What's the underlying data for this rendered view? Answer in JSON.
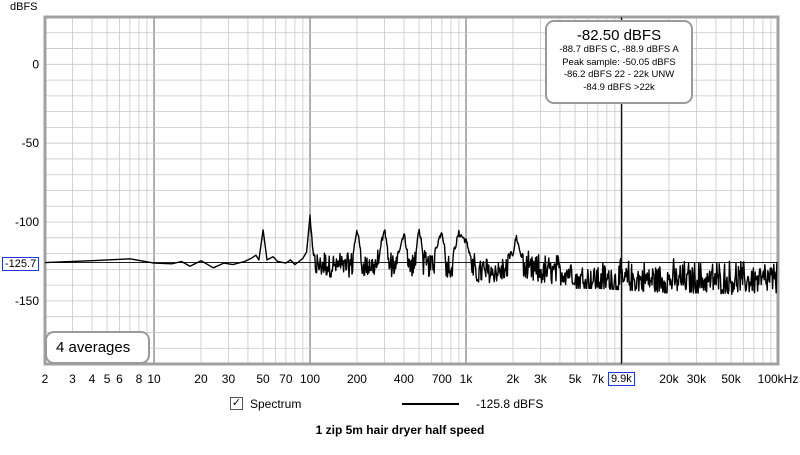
{
  "chart_data": {
    "type": "line",
    "title": "1 zip 5m hair dryer half speed",
    "ylabel": "dBFS",
    "xlabel": "",
    "x_scale": "log",
    "xlim": [
      2,
      100000
    ],
    "ylim": [
      -190,
      30
    ],
    "grid": true,
    "x_tick_labels": [
      {
        "v": 2,
        "t": "2"
      },
      {
        "v": 3,
        "t": "3"
      },
      {
        "v": 4,
        "t": "4"
      },
      {
        "v": 5,
        "t": "5"
      },
      {
        "v": 6,
        "t": "6"
      },
      {
        "v": 8,
        "t": "8"
      },
      {
        "v": 10,
        "t": "10"
      },
      {
        "v": 20,
        "t": "20"
      },
      {
        "v": 30,
        "t": "30"
      },
      {
        "v": 50,
        "t": "50"
      },
      {
        "v": 70,
        "t": "70"
      },
      {
        "v": 100,
        "t": "100"
      },
      {
        "v": 200,
        "t": "200"
      },
      {
        "v": 400,
        "t": "400"
      },
      {
        "v": 700,
        "t": "700"
      },
      {
        "v": 1000,
        "t": "1k"
      },
      {
        "v": 2000,
        "t": "2k"
      },
      {
        "v": 3000,
        "t": "3k"
      },
      {
        "v": 5000,
        "t": "5k"
      },
      {
        "v": 7000,
        "t": "7k"
      },
      {
        "v": 20000,
        "t": "20k"
      },
      {
        "v": 30000,
        "t": "30k"
      },
      {
        "v": 50000,
        "t": "50k"
      },
      {
        "v": 100000,
        "t": "100kHz"
      }
    ],
    "y_tick_labels": [
      {
        "v": 0,
        "t": "0"
      },
      {
        "v": -50,
        "t": "-50"
      },
      {
        "v": -100,
        "t": "-100"
      },
      {
        "v": -150,
        "t": "-150"
      }
    ],
    "series": [
      {
        "name": "Spectrum",
        "color": "#000000",
        "points": [
          [
            2,
            -125.7
          ],
          [
            4,
            -124.5
          ],
          [
            7,
            -123.3
          ],
          [
            10,
            -126
          ],
          [
            13,
            -126.5
          ],
          [
            15,
            -125
          ],
          [
            17,
            -128
          ],
          [
            20,
            -124.5
          ],
          [
            24,
            -129
          ],
          [
            28,
            -126
          ],
          [
            32,
            -127
          ],
          [
            38,
            -125
          ],
          [
            42,
            -123
          ],
          [
            45,
            -121
          ],
          [
            47,
            -124
          ],
          [
            50,
            -105
          ],
          [
            53,
            -124
          ],
          [
            58,
            -122
          ],
          [
            62,
            -125
          ],
          [
            66,
            -125.5
          ],
          [
            70,
            -126
          ],
          [
            75,
            -124
          ],
          [
            80,
            -127
          ],
          [
            85,
            -125
          ],
          [
            90,
            -123
          ],
          [
            95,
            -119
          ],
          [
            100,
            -96
          ],
          [
            104,
            -118
          ],
          [
            110,
            -126
          ],
          [
            120,
            -128
          ],
          [
            130,
            -127
          ],
          [
            140,
            -126
          ],
          [
            150,
            -127
          ],
          [
            160,
            -126
          ],
          [
            170,
            -127
          ],
          [
            185,
            -126
          ],
          [
            200,
            -104
          ],
          [
            215,
            -124
          ],
          [
            240,
            -127
          ],
          [
            270,
            -126
          ],
          [
            300,
            -104
          ],
          [
            320,
            -124
          ],
          [
            350,
            -127
          ],
          [
            400,
            -107
          ],
          [
            430,
            -124
          ],
          [
            470,
            -126
          ],
          [
            500,
            -103
          ],
          [
            540,
            -125
          ],
          [
            600,
            -126
          ],
          [
            700,
            -105
          ],
          [
            750,
            -124
          ],
          [
            800,
            -126
          ],
          [
            900,
            -107
          ],
          [
            1000,
            -112
          ],
          [
            1100,
            -125
          ],
          [
            1300,
            -127
          ],
          [
            1500,
            -126
          ],
          [
            1700,
            -124
          ],
          [
            2000,
            -120
          ],
          [
            2100,
            -109
          ],
          [
            2250,
            -121
          ],
          [
            2500,
            -124
          ],
          [
            3000,
            -127
          ],
          [
            4000,
            -129
          ],
          [
            5000,
            -130
          ],
          [
            7000,
            -130
          ],
          [
            10000,
            -131
          ],
          [
            15000,
            -132
          ],
          [
            20000,
            -133
          ],
          [
            30000,
            -133
          ],
          [
            50000,
            -134
          ],
          [
            70000,
            -133
          ],
          [
            100000,
            -134
          ]
        ],
        "noise": {
          "start_x": 100,
          "segments": [
            {
              "x_from": 100,
              "x_to": 1000,
              "low": -135,
              "high": -116
            },
            {
              "x_from": 1000,
              "x_to": 5000,
              "low": -140,
              "high": -118
            },
            {
              "x_from": 5000,
              "x_to": 100000,
              "low": -146,
              "high": -122
            }
          ]
        }
      }
    ]
  },
  "y_unit": "dBFS",
  "readouts": {
    "y_value": "-125.7",
    "cursor_x": "9.9k",
    "cursor_x_value": 9900
  },
  "info_box": {
    "main": "-82.50 dBFS",
    "lines": [
      "-88.7 dBFS C, -88.9 dBFS A",
      "Peak sample: -50.05 dBFS",
      "-86.2 dBFS 22 - 22k UNW",
      "-84.9 dBFS >22k"
    ]
  },
  "averages_label": "4 averages",
  "legend": {
    "checked": true,
    "check_glyph": "✓",
    "label": "Spectrum",
    "value": "-125.8 dBFS"
  },
  "colors": {
    "grid": "#c8c8c8",
    "grid_major": "#505050",
    "frame": "#a0a0a0",
    "trace": "#000000",
    "readout_border": "#1a3bd6"
  }
}
